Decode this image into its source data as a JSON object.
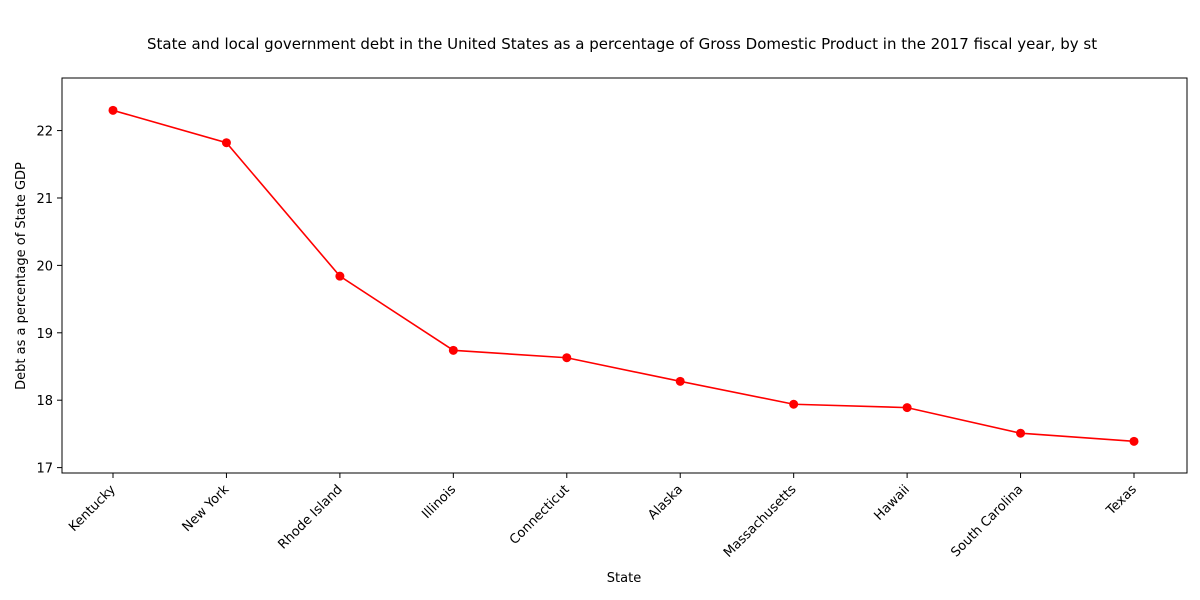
{
  "chart_data": {
    "type": "line",
    "title": "State and local government debt in the United States as a percentage of Gross Domestic Product in the 2017 fiscal year, by st",
    "xlabel": "State",
    "ylabel": "Debt as a percentage of State GDP",
    "categories": [
      "Kentucky",
      "New York",
      "Rhode Island",
      "Illinois",
      "Connecticut",
      "Alaska",
      "Massachusetts",
      "Hawaii",
      "South Carolina",
      "Texas"
    ],
    "series": [
      {
        "values": [
          22.3,
          21.82,
          19.84,
          18.74,
          18.63,
          18.28,
          17.94,
          17.89,
          17.51,
          17.39
        ]
      }
    ],
    "ylim": [
      16.92,
      22.78
    ],
    "yticks": [
      17,
      18,
      19,
      20,
      21,
      22
    ],
    "grid": false,
    "line_color": "#ff0000",
    "marker": "circle"
  }
}
